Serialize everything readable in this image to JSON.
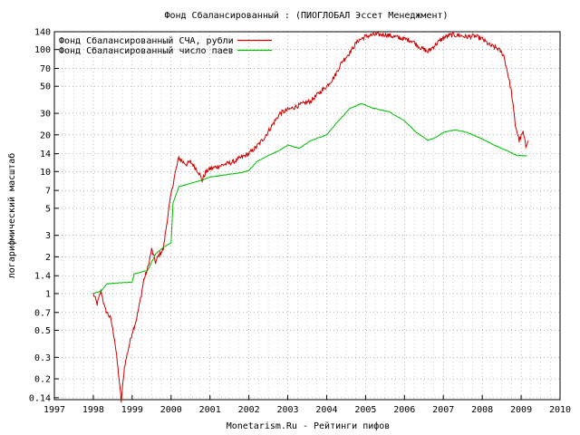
{
  "chart_data": {
    "type": "line",
    "title": "Фонд Сбалансированный : (ПИОГЛОБАЛ Эссет Менеджмент)",
    "xlabel": "Monetarism.Ru - Рейтинги пифов",
    "ylabel": "логарифмический масштаб",
    "y_scale": "log",
    "xlim": [
      1997,
      2010
    ],
    "ylim": [
      0.135,
      140
    ],
    "x_ticks": [
      "1997",
      "1998",
      "1999",
      "2000",
      "2001",
      "2002",
      "2003",
      "2004",
      "2005",
      "2006",
      "2007",
      "2008",
      "2009",
      "2010"
    ],
    "y_ticks": [
      "0.14",
      "0.2",
      "0.3",
      "0.5",
      "0.7",
      "1",
      "1.4",
      "2",
      "3",
      "5",
      "7",
      "10",
      "14",
      "20",
      "30",
      "50",
      "70",
      "100",
      "140"
    ],
    "grid": true,
    "legend_position": "top-left",
    "series": [
      {
        "name": "Фонд Сбалансированный СЧА, рубли",
        "color": "#cc0000",
        "points": [
          [
            1998.0,
            1.0
          ],
          [
            1998.1,
            0.82
          ],
          [
            1998.2,
            1.05
          ],
          [
            1998.3,
            0.75
          ],
          [
            1998.45,
            0.62
          ],
          [
            1998.55,
            0.42
          ],
          [
            1998.65,
            0.22
          ],
          [
            1998.72,
            0.13
          ],
          [
            1998.8,
            0.25
          ],
          [
            1998.9,
            0.35
          ],
          [
            1999.0,
            0.48
          ],
          [
            1999.1,
            0.6
          ],
          [
            1999.2,
            0.85
          ],
          [
            1999.3,
            1.3
          ],
          [
            1999.4,
            1.6
          ],
          [
            1999.5,
            2.3
          ],
          [
            1999.6,
            1.8
          ],
          [
            1999.7,
            2.1
          ],
          [
            1999.8,
            2.3
          ],
          [
            1999.9,
            4.0
          ],
          [
            2000.0,
            6.5
          ],
          [
            2000.1,
            9.5
          ],
          [
            2000.2,
            13.0
          ],
          [
            2000.3,
            12.0
          ],
          [
            2000.4,
            11.5
          ],
          [
            2000.5,
            12.0
          ],
          [
            2000.6,
            11.0
          ],
          [
            2000.7,
            10.0
          ],
          [
            2000.8,
            8.5
          ],
          [
            2000.9,
            10.0
          ],
          [
            2001.0,
            10.5
          ],
          [
            2001.2,
            11.0
          ],
          [
            2001.4,
            11.5
          ],
          [
            2001.6,
            12.0
          ],
          [
            2001.8,
            13.0
          ],
          [
            2002.0,
            14.0
          ],
          [
            2002.2,
            16.0
          ],
          [
            2002.4,
            19.0
          ],
          [
            2002.6,
            24.0
          ],
          [
            2002.8,
            30.0
          ],
          [
            2003.0,
            32.0
          ],
          [
            2003.2,
            34.0
          ],
          [
            2003.4,
            36.0
          ],
          [
            2003.6,
            38.0
          ],
          [
            2003.8,
            44.0
          ],
          [
            2004.0,
            50.0
          ],
          [
            2004.2,
            60.0
          ],
          [
            2004.4,
            80.0
          ],
          [
            2004.6,
            95.0
          ],
          [
            2004.8,
            118.0
          ],
          [
            2005.0,
            128.0
          ],
          [
            2005.2,
            132.0
          ],
          [
            2005.5,
            133.0
          ],
          [
            2005.8,
            126.0
          ],
          [
            2006.0,
            122.0
          ],
          [
            2006.2,
            118.0
          ],
          [
            2006.4,
            104.0
          ],
          [
            2006.6,
            96.0
          ],
          [
            2006.8,
            110.0
          ],
          [
            2007.0,
            125.0
          ],
          [
            2007.2,
            132.0
          ],
          [
            2007.4,
            131.0
          ],
          [
            2007.6,
            127.0
          ],
          [
            2007.8,
            129.0
          ],
          [
            2008.0,
            122.0
          ],
          [
            2008.2,
            108.0
          ],
          [
            2008.4,
            102.0
          ],
          [
            2008.55,
            90.0
          ],
          [
            2008.65,
            65.0
          ],
          [
            2008.75,
            45.0
          ],
          [
            2008.85,
            24.0
          ],
          [
            2008.95,
            18.0
          ],
          [
            2009.05,
            21.0
          ],
          [
            2009.12,
            16.0
          ],
          [
            2009.17,
            18.0
          ]
        ]
      },
      {
        "name": "Фонд Сбалансированный число паев",
        "color": "#00bb00",
        "points": [
          [
            1998.0,
            1.0
          ],
          [
            1998.2,
            1.05
          ],
          [
            1998.35,
            1.2
          ],
          [
            1998.6,
            1.22
          ],
          [
            1999.0,
            1.24
          ],
          [
            1999.05,
            1.45
          ],
          [
            1999.4,
            1.55
          ],
          [
            1999.6,
            2.1
          ],
          [
            1999.8,
            2.4
          ],
          [
            2000.0,
            2.6
          ],
          [
            2000.05,
            5.5
          ],
          [
            2000.2,
            7.5
          ],
          [
            2000.5,
            8.0
          ],
          [
            2000.8,
            8.5
          ],
          [
            2001.0,
            9.0
          ],
          [
            2001.4,
            9.4
          ],
          [
            2001.8,
            9.8
          ],
          [
            2002.0,
            10.2
          ],
          [
            2002.2,
            12.0
          ],
          [
            2002.5,
            13.5
          ],
          [
            2002.8,
            15.0
          ],
          [
            2003.0,
            16.5
          ],
          [
            2003.3,
            15.5
          ],
          [
            2003.6,
            18.0
          ],
          [
            2004.0,
            20.0
          ],
          [
            2004.3,
            26.0
          ],
          [
            2004.6,
            33.0
          ],
          [
            2004.9,
            36.0
          ],
          [
            2005.2,
            33.0
          ],
          [
            2005.6,
            31.0
          ],
          [
            2006.0,
            26.0
          ],
          [
            2006.3,
            21.0
          ],
          [
            2006.6,
            18.0
          ],
          [
            2006.8,
            19.0
          ],
          [
            2007.0,
            21.0
          ],
          [
            2007.3,
            22.0
          ],
          [
            2007.6,
            21.0
          ],
          [
            2008.0,
            18.5
          ],
          [
            2008.3,
            16.5
          ],
          [
            2008.6,
            15.0
          ],
          [
            2008.9,
            13.5
          ],
          [
            2009.15,
            13.5
          ]
        ]
      }
    ]
  }
}
